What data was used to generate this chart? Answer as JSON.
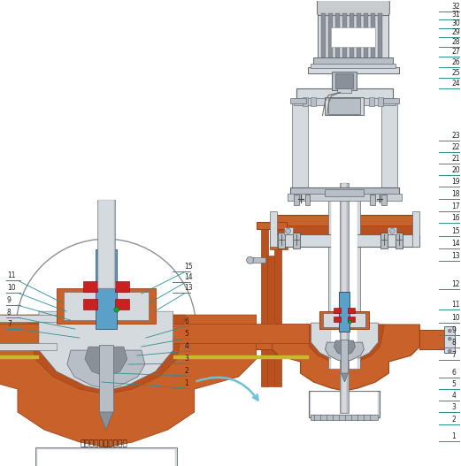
{
  "colors": {
    "rust": "#C8622A",
    "rust_dark": "#A04010",
    "rust_mid": "#B85020",
    "silver": "#B8BEC5",
    "silver_dark": "#8A9098",
    "silver_light": "#D5DADF",
    "silver_vlight": "#E8ECEF",
    "blue": "#5BA0C8",
    "white": "#FFFFFF",
    "gray": "#909898",
    "gray_light": "#C8D0D5",
    "gray_dark": "#606870",
    "line": "#2A9090",
    "red": "#CC2020",
    "yellow": "#C8B830",
    "green_mark": "#18A030",
    "bg": "#FFFFFF",
    "outline": "#505050",
    "motor_bg": "#C8CCCE"
  },
  "subtitle_left": "液下泵底部局部放大图"
}
